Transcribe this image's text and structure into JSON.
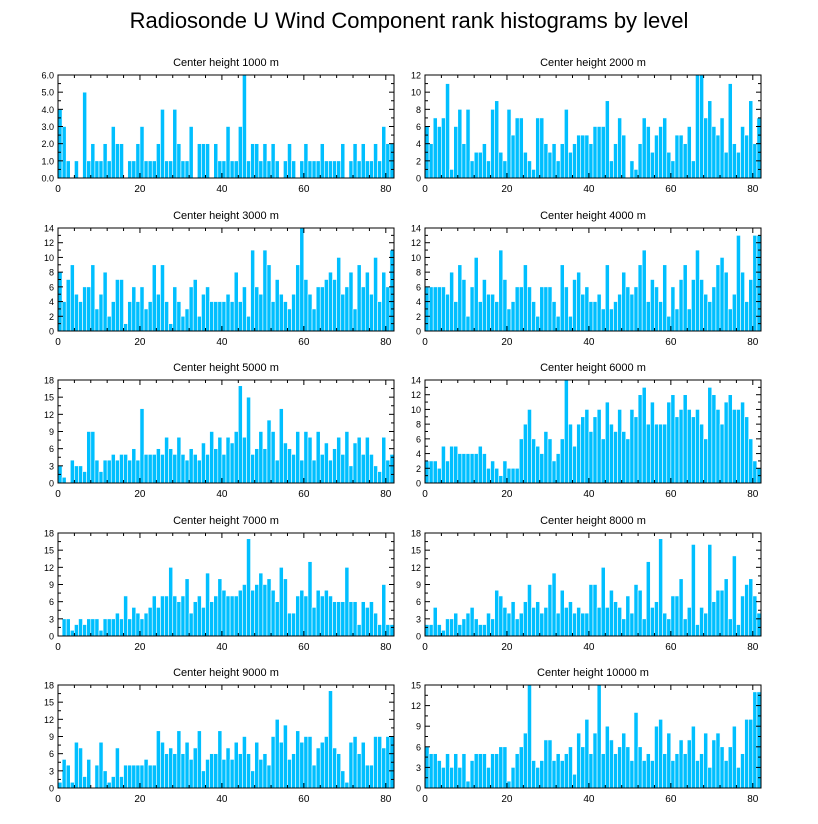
{
  "title": "Radiosonde U Wind Component rank histograms by level",
  "chart_data": [
    {
      "type": "bar",
      "title": "Center height 1000 m",
      "xlim": [
        0,
        82
      ],
      "ylim": [
        0,
        6
      ],
      "xticks": [
        0,
        20,
        40,
        60,
        80
      ],
      "yticks": [
        0,
        1,
        2,
        3,
        4,
        5,
        6
      ],
      "ytick_labels": [
        "0.0",
        "1.0",
        "2.0",
        "3.0",
        "4.0",
        "5.0",
        "6.0"
      ],
      "values": [
        4,
        3,
        1,
        0,
        1,
        0,
        5,
        1,
        2,
        1,
        1,
        2,
        1,
        3,
        2,
        2,
        0,
        1,
        1,
        2,
        3,
        1,
        1,
        1,
        2,
        4,
        1,
        1,
        4,
        2,
        1,
        1,
        3,
        0,
        2,
        2,
        2,
        0,
        2,
        1,
        1,
        3,
        1,
        1,
        3,
        6,
        1,
        2,
        2,
        1,
        2,
        1,
        2,
        1,
        0,
        1,
        2,
        1,
        0,
        1,
        2,
        1,
        1,
        1,
        2,
        1,
        1,
        1,
        1,
        2,
        0,
        1,
        2,
        1,
        2,
        1,
        1,
        2,
        1,
        3,
        2,
        2
      ]
    },
    {
      "type": "bar",
      "title": "Center height 2000 m",
      "xlim": [
        0,
        82
      ],
      "ylim": [
        0,
        12
      ],
      "xticks": [
        0,
        20,
        40,
        60,
        80
      ],
      "yticks": [
        0,
        2,
        4,
        6,
        8,
        10,
        12
      ],
      "ytick_labels": [
        "0",
        "2",
        "4",
        "6",
        "8",
        "10",
        "12"
      ],
      "values": [
        6,
        4,
        7,
        6,
        7,
        11,
        1,
        6,
        8,
        4,
        8,
        2,
        3,
        3,
        4,
        2,
        8,
        9,
        3,
        2,
        8,
        5,
        7,
        7,
        3,
        2,
        1,
        7,
        7,
        4,
        3,
        4,
        2,
        4,
        8,
        3,
        4,
        5,
        5,
        5,
        4,
        6,
        6,
        6,
        9,
        2,
        4,
        7,
        5,
        0,
        2,
        1,
        4,
        7,
        6,
        3,
        5,
        6,
        7,
        3,
        2,
        5,
        5,
        4,
        6,
        2,
        12,
        12,
        7,
        9,
        6,
        5,
        7,
        3,
        11,
        4,
        3,
        6,
        5,
        9,
        4,
        7
      ]
    },
    {
      "type": "bar",
      "title": "Center height 3000 m",
      "xlim": [
        0,
        82
      ],
      "ylim": [
        0,
        14
      ],
      "xticks": [
        0,
        20,
        40,
        60,
        80
      ],
      "yticks": [
        0,
        2,
        4,
        6,
        8,
        10,
        12,
        14
      ],
      "ytick_labels": [
        "0",
        "2",
        "4",
        "6",
        "8",
        "10",
        "12",
        "14"
      ],
      "values": [
        8,
        4,
        7,
        9,
        5,
        4,
        6,
        6,
        9,
        3,
        5,
        8,
        2,
        4,
        7,
        7,
        1,
        4,
        6,
        4,
        6,
        3,
        4,
        9,
        5,
        9,
        4,
        1,
        6,
        4,
        2,
        3,
        6,
        7,
        2,
        5,
        6,
        4,
        4,
        4,
        4,
        5,
        4,
        8,
        4,
        6,
        2,
        11,
        6,
        5,
        11,
        9,
        4,
        7,
        5,
        4,
        3,
        5,
        9,
        14,
        7,
        5,
        3,
        6,
        6,
        7,
        8,
        7,
        10,
        5,
        6,
        8,
        3,
        9,
        6,
        8,
        5,
        10,
        4,
        8,
        6,
        11
      ]
    },
    {
      "type": "bar",
      "title": "Center height 4000 m",
      "xlim": [
        0,
        82
      ],
      "ylim": [
        0,
        14
      ],
      "xticks": [
        0,
        20,
        40,
        60,
        80
      ],
      "yticks": [
        0,
        2,
        4,
        6,
        8,
        10,
        12,
        14
      ],
      "ytick_labels": [
        "0",
        "2",
        "4",
        "6",
        "8",
        "10",
        "12",
        "14"
      ],
      "values": [
        6,
        6,
        6,
        6,
        6,
        5,
        8,
        4,
        9,
        7,
        2,
        6,
        10,
        4,
        7,
        5,
        5,
        4,
        11,
        7,
        3,
        4,
        6,
        6,
        9,
        6,
        4,
        2,
        6,
        6,
        6,
        4,
        2,
        9,
        6,
        2,
        7,
        8,
        5,
        6,
        4,
        4,
        5,
        3,
        9,
        3,
        4,
        5,
        8,
        6,
        5,
        6,
        9,
        11,
        4,
        7,
        6,
        4,
        9,
        2,
        6,
        3,
        7,
        9,
        3,
        7,
        11,
        7,
        5,
        4,
        6,
        9,
        10,
        8,
        3,
        5,
        13,
        8,
        4,
        7,
        13,
        13
      ]
    },
    {
      "type": "bar",
      "title": "Center height 5000 m",
      "xlim": [
        0,
        82
      ],
      "ylim": [
        0,
        18
      ],
      "xticks": [
        0,
        20,
        40,
        60,
        80
      ],
      "yticks": [
        0,
        3,
        6,
        9,
        12,
        15,
        18
      ],
      "ytick_labels": [
        "0",
        "3",
        "6",
        "9",
        "12",
        "15",
        "18"
      ],
      "values": [
        3,
        1,
        0,
        4,
        3,
        3,
        2,
        9,
        9,
        4,
        2,
        4,
        4,
        5,
        4,
        5,
        5,
        4,
        6,
        4,
        13,
        5,
        5,
        5,
        6,
        5,
        8,
        6,
        5,
        8,
        5,
        4,
        6,
        5,
        4,
        7,
        5,
        9,
        6,
        8,
        5,
        8,
        7,
        9,
        17,
        8,
        15,
        5,
        6,
        9,
        6,
        11,
        9,
        4,
        13,
        7,
        6,
        5,
        9,
        4,
        9,
        8,
        4,
        9,
        5,
        7,
        4,
        6,
        8,
        5,
        9,
        3,
        7,
        8,
        5,
        8,
        5,
        3,
        2,
        8,
        4,
        5
      ]
    },
    {
      "type": "bar",
      "title": "Center height 6000 m",
      "xlim": [
        0,
        82
      ],
      "ylim": [
        0,
        14
      ],
      "xticks": [
        0,
        20,
        40,
        60,
        80
      ],
      "yticks": [
        0,
        2,
        4,
        6,
        8,
        10,
        12,
        14
      ],
      "ytick_labels": [
        "0",
        "2",
        "4",
        "6",
        "8",
        "10",
        "12",
        "14"
      ],
      "values": [
        3,
        3,
        3,
        2,
        5,
        3,
        5,
        5,
        4,
        4,
        4,
        4,
        4,
        5,
        4,
        2,
        3,
        2,
        1,
        3,
        2,
        2,
        2,
        6,
        8,
        10,
        6,
        5,
        4,
        7,
        6,
        3,
        4,
        6,
        14,
        8,
        5,
        8,
        9,
        10,
        7,
        9,
        10,
        6,
        11,
        8,
        7,
        10,
        7,
        6,
        10,
        9,
        12,
        13,
        8,
        11,
        8,
        8,
        8,
        11,
        12,
        9,
        10,
        12,
        10,
        9,
        10,
        8,
        6,
        13,
        12,
        10,
        8,
        11,
        12,
        10,
        10,
        11,
        9,
        6,
        3,
        2
      ]
    },
    {
      "type": "bar",
      "title": "Center height 7000 m",
      "xlim": [
        0,
        82
      ],
      "ylim": [
        0,
        18
      ],
      "xticks": [
        0,
        20,
        40,
        60,
        80
      ],
      "yticks": [
        0,
        3,
        6,
        9,
        12,
        15,
        18
      ],
      "ytick_labels": [
        "0",
        "3",
        "6",
        "9",
        "12",
        "15",
        "18"
      ],
      "values": [
        0,
        3,
        3,
        1,
        2,
        3,
        2,
        3,
        3,
        3,
        1,
        3,
        3,
        3,
        4,
        3,
        7,
        3,
        5,
        4,
        3,
        4,
        5,
        7,
        5,
        7,
        7,
        12,
        7,
        6,
        7,
        10,
        4,
        6,
        7,
        5,
        11,
        6,
        7,
        10,
        8,
        7,
        7,
        7,
        8,
        9,
        17,
        8,
        9,
        11,
        9,
        10,
        8,
        6,
        12,
        10,
        4,
        4,
        7,
        8,
        7,
        13,
        5,
        8,
        7,
        8,
        7,
        6,
        6,
        6,
        12,
        6,
        6,
        2,
        6,
        5,
        6,
        4,
        2,
        9,
        2,
        2
      ]
    },
    {
      "type": "bar",
      "title": "Center height 8000 m",
      "xlim": [
        0,
        82
      ],
      "ylim": [
        0,
        18
      ],
      "xticks": [
        0,
        20,
        40,
        60,
        80
      ],
      "yticks": [
        0,
        3,
        6,
        9,
        12,
        15,
        18
      ],
      "ytick_labels": [
        "0",
        "3",
        "6",
        "9",
        "12",
        "15",
        "18"
      ],
      "values": [
        2,
        2,
        5,
        2,
        1,
        3,
        3,
        4,
        2,
        3,
        4,
        5,
        3,
        2,
        2,
        4,
        3,
        8,
        7,
        5,
        4,
        6,
        3,
        4,
        6,
        9,
        5,
        6,
        4,
        5,
        9,
        11,
        4,
        8,
        5,
        6,
        4,
        5,
        4,
        4,
        9,
        9,
        5,
        12,
        5,
        8,
        6,
        5,
        3,
        7,
        4,
        9,
        8,
        3,
        13,
        5,
        6,
        17,
        4,
        3,
        7,
        7,
        10,
        3,
        5,
        16,
        2,
        5,
        4,
        16,
        6,
        8,
        8,
        10,
        3,
        14,
        2,
        7,
        9,
        10,
        7,
        4
      ]
    },
    {
      "type": "bar",
      "title": "Center height 9000 m",
      "xlim": [
        0,
        82
      ],
      "ylim": [
        0,
        18
      ],
      "xticks": [
        0,
        20,
        40,
        60,
        80
      ],
      "yticks": [
        0,
        3,
        6,
        9,
        12,
        15,
        18
      ],
      "ytick_labels": [
        "0",
        "3",
        "6",
        "9",
        "12",
        "15",
        "18"
      ],
      "values": [
        1,
        5,
        4,
        1,
        8,
        7,
        2,
        5,
        0,
        4,
        8,
        3,
        1,
        2,
        7,
        2,
        4,
        4,
        4,
        4,
        4,
        5,
        4,
        4,
        10,
        8,
        6,
        7,
        6,
        10,
        6,
        8,
        5,
        7,
        10,
        3,
        5,
        6,
        6,
        10,
        5,
        7,
        5,
        8,
        6,
        9,
        6,
        3,
        8,
        5,
        6,
        4,
        9,
        12,
        8,
        11,
        5,
        6,
        10,
        8,
        9,
        9,
        4,
        7,
        8,
        9,
        17,
        7,
        6,
        3,
        1,
        8,
        9,
        6,
        8,
        4,
        4,
        9,
        9,
        7,
        9,
        9
      ]
    },
    {
      "type": "bar",
      "title": "Center height 10000 m",
      "xlim": [
        0,
        82
      ],
      "ylim": [
        0,
        15
      ],
      "xticks": [
        0,
        20,
        40,
        60,
        80
      ],
      "yticks": [
        0,
        3,
        6,
        9,
        12,
        15
      ],
      "ytick_labels": [
        "0",
        "3",
        "6",
        "9",
        "12",
        "15"
      ],
      "values": [
        6,
        5,
        5,
        4,
        3,
        5,
        3,
        5,
        3,
        5,
        1,
        4,
        5,
        5,
        5,
        3,
        5,
        5,
        6,
        6,
        1,
        3,
        5,
        6,
        8,
        15,
        4,
        3,
        4,
        7,
        7,
        4,
        5,
        4,
        5,
        6,
        2,
        8,
        6,
        10,
        5,
        8,
        15,
        5,
        9,
        7,
        5,
        6,
        8,
        6,
        4,
        11,
        6,
        4,
        5,
        4,
        9,
        10,
        5,
        8,
        4,
        5,
        7,
        5,
        7,
        9,
        4,
        5,
        8,
        3,
        7,
        8,
        6,
        4,
        6,
        9,
        3,
        5,
        10,
        10,
        14,
        14
      ]
    }
  ]
}
